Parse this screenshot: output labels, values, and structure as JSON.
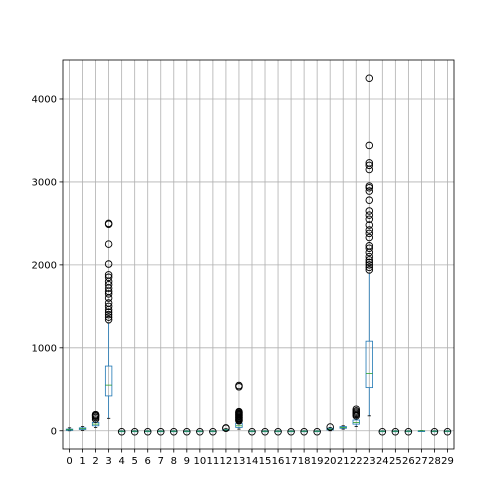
{
  "chart_data": {
    "type": "boxplot",
    "title": "",
    "xlabel": "",
    "ylabel": "",
    "categories": [
      "0",
      "1",
      "2",
      "3",
      "4",
      "5",
      "6",
      "7",
      "8",
      "9",
      "10",
      "11",
      "12",
      "13",
      "14",
      "15",
      "16",
      "17",
      "18",
      "19",
      "20",
      "21",
      "22",
      "23",
      "24",
      "25",
      "26",
      "27",
      "28",
      "29"
    ],
    "y_ticks": [
      0,
      1000,
      2000,
      3000,
      4000
    ],
    "ylim": [
      -220,
      4470
    ],
    "grid": true,
    "colors": {
      "box": "#1f77b4",
      "median": "#2ca02c",
      "whisker": "#1f77b4",
      "outlier_edge": "#000000",
      "grid": "#b0b0b0"
    },
    "series": [
      {
        "category": "0",
        "q1": 5,
        "median": 12,
        "q3": 20,
        "whisker_low": 0,
        "whisker_high": 35,
        "outliers": []
      },
      {
        "category": "1",
        "q1": 15,
        "median": 25,
        "q3": 35,
        "whisker_low": 5,
        "whisker_high": 50,
        "outliers": []
      },
      {
        "category": "2",
        "q1": 60,
        "median": 80,
        "q3": 100,
        "whisker_low": 40,
        "whisker_high": 120,
        "outliers": [
          140,
          160,
          175,
          185,
          195
        ]
      },
      {
        "category": "3",
        "q1": 420,
        "median": 550,
        "q3": 780,
        "whisker_low": 150,
        "whisker_high": 1300,
        "outliers": [
          1340,
          1370,
          1400,
          1430,
          1460,
          1500,
          1540,
          1600,
          1650,
          1680,
          1720,
          1760,
          1800,
          1850,
          1880,
          2010,
          2250,
          2490,
          2500
        ]
      },
      {
        "category": "4",
        "q1": -8,
        "median": -5,
        "q3": -2,
        "whisker_low": -10,
        "whisker_high": 0,
        "outliers": [
          -12
        ]
      },
      {
        "category": "5",
        "q1": -8,
        "median": -5,
        "q3": -2,
        "whisker_low": -10,
        "whisker_high": 0,
        "outliers": [
          -12
        ]
      },
      {
        "category": "6",
        "q1": -8,
        "median": -5,
        "q3": -2,
        "whisker_low": -10,
        "whisker_high": 0,
        "outliers": [
          -12
        ]
      },
      {
        "category": "7",
        "q1": -8,
        "median": -5,
        "q3": -2,
        "whisker_low": -10,
        "whisker_high": 0,
        "outliers": [
          -12
        ]
      },
      {
        "category": "8",
        "q1": -8,
        "median": -5,
        "q3": -2,
        "whisker_low": -10,
        "whisker_high": 0,
        "outliers": [
          -12
        ]
      },
      {
        "category": "9",
        "q1": -8,
        "median": -5,
        "q3": -2,
        "whisker_low": -10,
        "whisker_high": 0,
        "outliers": [
          -12
        ]
      },
      {
        "category": "10",
        "q1": -8,
        "median": -5,
        "q3": -2,
        "whisker_low": -10,
        "whisker_high": 0,
        "outliers": [
          -12
        ]
      },
      {
        "category": "11",
        "q1": -8,
        "median": -5,
        "q3": -2,
        "whisker_low": -10,
        "whisker_high": 0,
        "outliers": [
          -12
        ]
      },
      {
        "category": "12",
        "q1": 5,
        "median": 10,
        "q3": 15,
        "whisker_low": 0,
        "whisker_high": 25,
        "outliers": [
          30,
          35
        ]
      },
      {
        "category": "13",
        "q1": 40,
        "median": 60,
        "q3": 90,
        "whisker_low": 20,
        "whisker_high": 110,
        "outliers": [
          120,
          130,
          140,
          150,
          160,
          170,
          180,
          190,
          200,
          210,
          220,
          230,
          530,
          545
        ]
      },
      {
        "category": "14",
        "q1": -8,
        "median": -5,
        "q3": -2,
        "whisker_low": -10,
        "whisker_high": 0,
        "outliers": [
          -12
        ]
      },
      {
        "category": "15",
        "q1": -8,
        "median": -5,
        "q3": -2,
        "whisker_low": -10,
        "whisker_high": 0,
        "outliers": [
          -12
        ]
      },
      {
        "category": "16",
        "q1": -8,
        "median": -5,
        "q3": -2,
        "whisker_low": -10,
        "whisker_high": 0,
        "outliers": [
          -12
        ]
      },
      {
        "category": "17",
        "q1": -8,
        "median": -5,
        "q3": -2,
        "whisker_low": -10,
        "whisker_high": 0,
        "outliers": [
          -12
        ]
      },
      {
        "category": "18",
        "q1": -8,
        "median": -5,
        "q3": -2,
        "whisker_low": -10,
        "whisker_high": 0,
        "outliers": [
          -12
        ]
      },
      {
        "category": "19",
        "q1": -8,
        "median": -5,
        "q3": -2,
        "whisker_low": -10,
        "whisker_high": 0,
        "outliers": [
          -12
        ]
      },
      {
        "category": "20",
        "q1": 10,
        "median": 20,
        "q3": 30,
        "whisker_low": 0,
        "whisker_high": 40,
        "outliers": [
          45
        ]
      },
      {
        "category": "21",
        "q1": 30,
        "median": 40,
        "q3": 50,
        "whisker_low": 20,
        "whisker_high": 60,
        "outliers": []
      },
      {
        "category": "22",
        "q1": 80,
        "median": 100,
        "q3": 130,
        "whisker_low": 50,
        "whisker_high": 160,
        "outliers": [
          180,
          195,
          210,
          225,
          240,
          260
        ]
      },
      {
        "category": "23",
        "q1": 520,
        "median": 690,
        "q3": 1080,
        "whisker_low": 180,
        "whisker_high": 1900,
        "outliers": [
          1940,
          1970,
          2000,
          2030,
          2060,
          2100,
          2150,
          2200,
          2230,
          2330,
          2380,
          2420,
          2480,
          2550,
          2600,
          2650,
          2780,
          2890,
          2930,
          2950,
          3150,
          3200,
          3230,
          3440,
          4250
        ]
      },
      {
        "category": "24",
        "q1": -8,
        "median": -5,
        "q3": -2,
        "whisker_low": -10,
        "whisker_high": 0,
        "outliers": [
          -12
        ]
      },
      {
        "category": "25",
        "q1": -8,
        "median": -5,
        "q3": -2,
        "whisker_low": -10,
        "whisker_high": 0,
        "outliers": [
          -12
        ]
      },
      {
        "category": "26",
        "q1": -8,
        "median": -5,
        "q3": -2,
        "whisker_low": -10,
        "whisker_high": 0,
        "outliers": [
          -12
        ]
      },
      {
        "category": "27",
        "q1": 0,
        "median": 0,
        "q3": 0,
        "whisker_low": 0,
        "whisker_high": 0,
        "outliers": []
      },
      {
        "category": "28",
        "q1": -8,
        "median": -5,
        "q3": -2,
        "whisker_low": -10,
        "whisker_high": 0,
        "outliers": [
          -12
        ]
      },
      {
        "category": "29",
        "q1": -8,
        "median": -5,
        "q3": -2,
        "whisker_low": -10,
        "whisker_high": 0,
        "outliers": [
          -12
        ]
      }
    ]
  }
}
